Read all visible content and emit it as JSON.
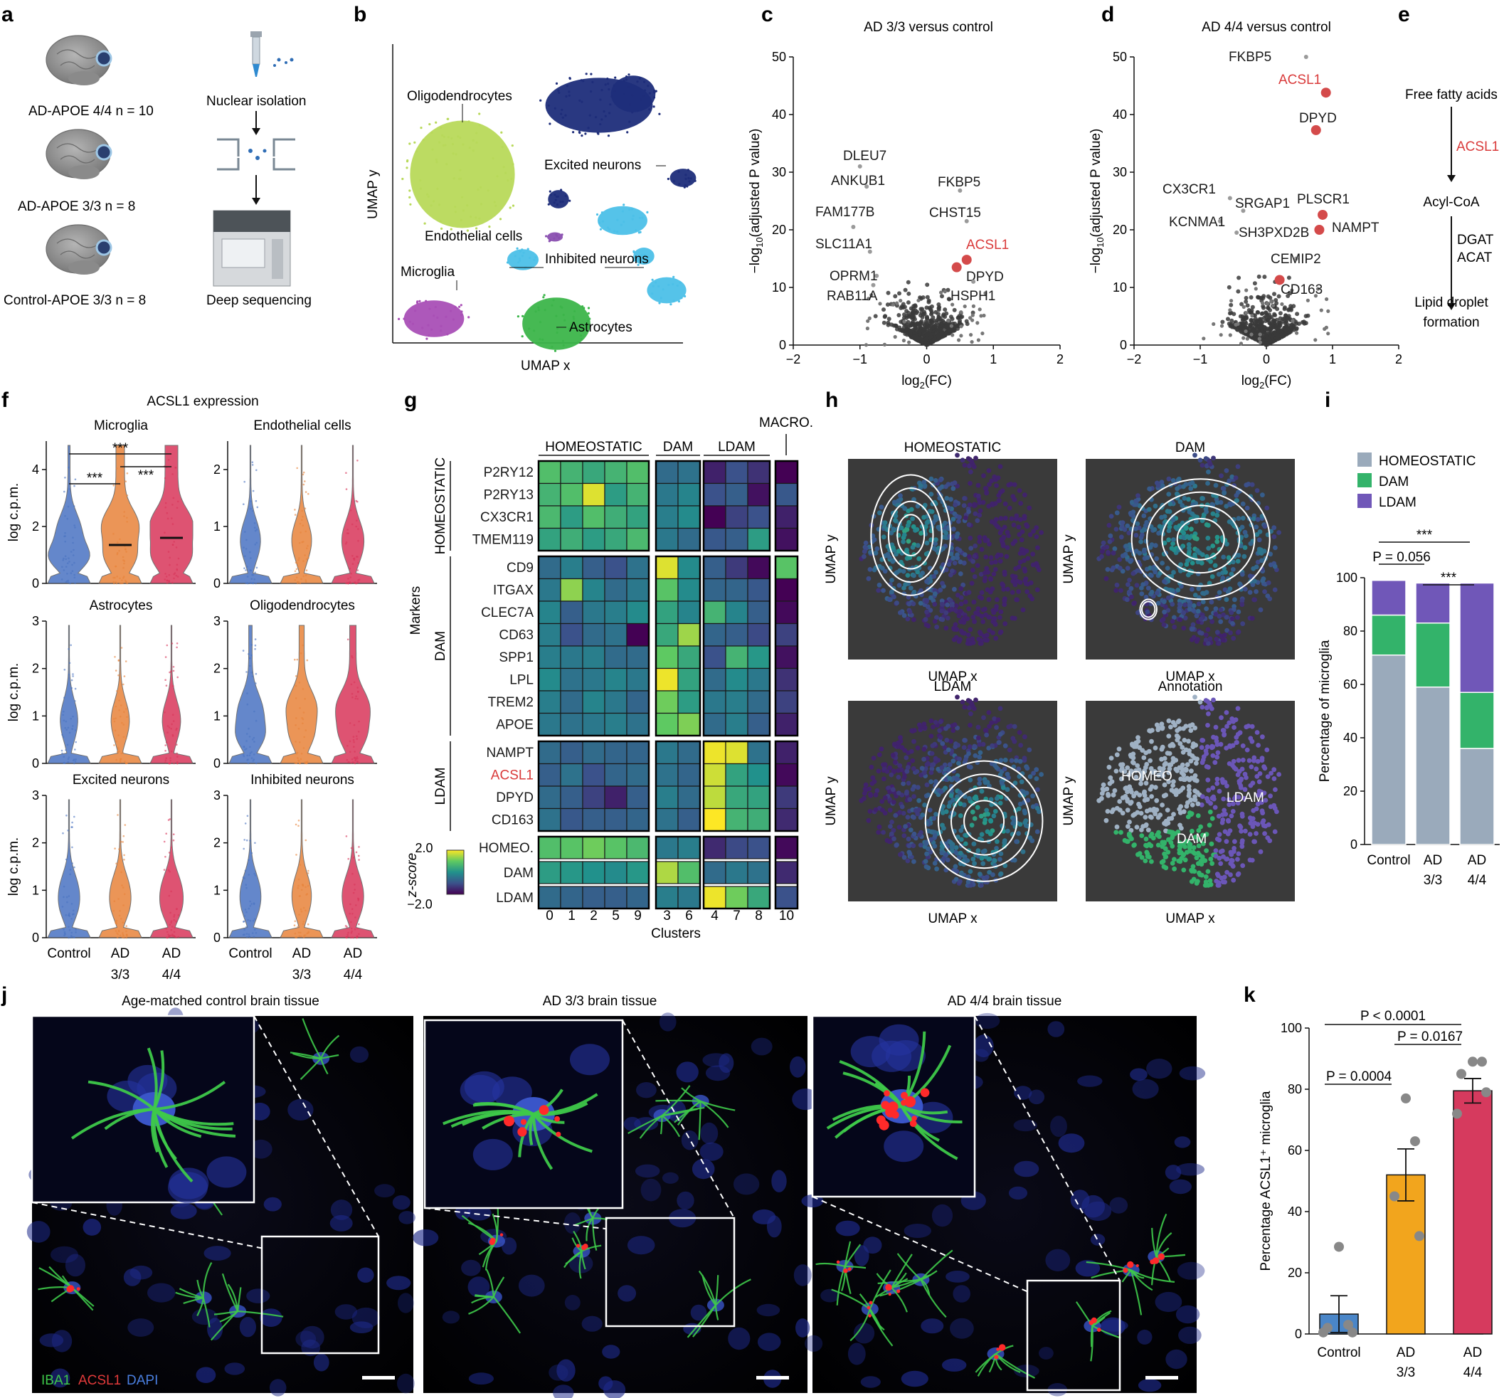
{
  "panels": {
    "a": {
      "letter": "a",
      "cohorts": [
        "AD-APOE 4/4 n = 10",
        "AD-APOE 3/3 n = 8",
        "Control-APOE 3/3 n = 8"
      ],
      "steps": [
        "Nuclear isolation",
        "Deep sequencing"
      ]
    },
    "b": {
      "letter": "b",
      "xlabel": "UMAP x",
      "ylabel": "UMAP y",
      "clusters": [
        {
          "name": "Oligodendrocytes",
          "color": "#b8d95a"
        },
        {
          "name": "Excited neurons",
          "color": "#1e2d7a"
        },
        {
          "name": "Endothelial cells",
          "color": "#8a4fb0"
        },
        {
          "name": "Inhibited neurons",
          "color": "#4cc0e8"
        },
        {
          "name": "Microglia",
          "color": "#a94fb6"
        },
        {
          "name": "Astrocytes",
          "color": "#3cb54a"
        }
      ]
    },
    "c": {
      "letter": "c",
      "title": "AD 3/3 versus control",
      "xlabel": "log2(FC)",
      "ylabel": "−log10(adjusted P value)",
      "labels": [
        "DLEU7",
        "ANKUB1",
        "FAM177B",
        "SLC11A1",
        "OPRM1",
        "RAB11A",
        "FKBP5",
        "CHST15",
        "ACSL1",
        "DPYD",
        "HSPH1"
      ]
    },
    "d": {
      "letter": "d",
      "title": "AD 4/4 versus control",
      "xlabel": "log2(FC)",
      "ylabel": "−log10(adjusted P value)",
      "labels": [
        "FKBP5",
        "ACSL1",
        "DPYD",
        "CX3CR1",
        "SRGAP1",
        "PLSCR1",
        "KCNMA1",
        "SH3PXD2B",
        "NAMPT",
        "CEMIP2",
        "CD163"
      ]
    },
    "e": {
      "letter": "e",
      "steps": [
        "Free fatty acids",
        "ACSL1",
        "Acyl-CoA",
        "DGAT",
        "ACAT",
        "Lipid droplet",
        "formation"
      ]
    },
    "f": {
      "letter": "f",
      "title": "ACSL1 expression",
      "ylabel": "log c.p.m.",
      "subpanels": [
        "Microglia",
        "Endothelial cells",
        "Astrocytes",
        "Oligodendrocytes",
        "Excited neurons",
        "Inhibited neurons"
      ],
      "groups": [
        "Control",
        "AD",
        "AD"
      ],
      "group_sub": [
        "",
        "3/3",
        "4/4"
      ],
      "sig": "***",
      "colors": {
        "control": "#4a73c2",
        "ad33": "#e8833a",
        "ad44": "#d9365a"
      }
    },
    "g": {
      "letter": "g",
      "col_groups": [
        "HOMEOSTATIC",
        "DAM",
        "LDAM",
        "MACRO."
      ],
      "row_groups": [
        "HOMEOSTATIC",
        "DAM",
        "LDAM"
      ],
      "markers_label": "Markers",
      "rows": [
        "P2RY12",
        "P2RY13",
        "CX3CR1",
        "TMEM119",
        "CD9",
        "ITGAX",
        "CLEC7A",
        "CD63",
        "SPP1",
        "LPL",
        "TREM2",
        "APOE",
        "NAMPT",
        "ACSL1",
        "DPYD",
        "CD163",
        "HOMEO.",
        "DAM",
        "LDAM"
      ],
      "clusters": [
        "0",
        "1",
        "2",
        "5",
        "9",
        "3",
        "6",
        "4",
        "7",
        "8",
        "10"
      ],
      "xlabel": "Clusters",
      "cbar_label": "z-score",
      "cbar_max": "2.0",
      "cbar_min": "−2.0",
      "z": [
        [
          0.8,
          0.6,
          0.4,
          0.6,
          0.8,
          -0.6,
          -0.5,
          -1.6,
          -1.0,
          -1.4,
          -2.0
        ],
        [
          0.6,
          0.8,
          1.8,
          0.2,
          0.6,
          -0.4,
          -0.2,
          -1.0,
          -0.8,
          -1.8,
          -0.9
        ],
        [
          0.7,
          0.2,
          0.8,
          0.5,
          0.3,
          -0.3,
          -0.1,
          -2.0,
          -1.2,
          -1.0,
          -1.6
        ],
        [
          0.3,
          0.5,
          0.2,
          0.4,
          0.7,
          -0.4,
          -0.6,
          -0.9,
          -0.8,
          0.2,
          -1.8
        ],
        [
          -0.6,
          -0.3,
          -0.8,
          -1.0,
          -0.5,
          1.8,
          -0.1,
          -0.8,
          -1.3,
          -1.9,
          0.9
        ],
        [
          -0.4,
          1.3,
          -0.2,
          -0.6,
          -0.4,
          0.9,
          -0.1,
          -0.7,
          -0.7,
          -0.9,
          -2.0
        ],
        [
          -0.2,
          -0.8,
          -0.4,
          -0.3,
          -0.1,
          0.3,
          -0.2,
          0.6,
          -0.2,
          -0.8,
          -1.9
        ],
        [
          -0.3,
          -1.0,
          -0.6,
          -0.5,
          -2.0,
          0.4,
          1.4,
          -0.7,
          -0.8,
          -1.1,
          -1.2
        ],
        [
          -0.3,
          -0.4,
          -0.3,
          -0.6,
          -0.6,
          1.0,
          0.4,
          -1.0,
          0.6,
          0.1,
          -1.8
        ],
        [
          -0.1,
          -0.5,
          -0.4,
          -0.2,
          -0.4,
          1.9,
          0.3,
          -0.6,
          -0.1,
          -0.4,
          -1.4
        ],
        [
          -0.3,
          -0.6,
          -0.2,
          -0.4,
          -0.7,
          1.1,
          0.2,
          -0.4,
          -0.3,
          -0.6,
          -1.2
        ],
        [
          -0.4,
          -0.5,
          -0.4,
          -0.3,
          -0.5,
          1.0,
          1.2,
          -0.6,
          -0.3,
          -0.8,
          -1.6
        ],
        [
          -0.6,
          -0.8,
          -0.6,
          -0.7,
          -0.7,
          -0.4,
          -0.6,
          1.9,
          1.8,
          -0.5,
          -1.6
        ],
        [
          -0.8,
          -0.5,
          -1.0,
          -0.7,
          -0.6,
          -0.5,
          -0.7,
          1.7,
          0.3,
          0.0,
          -1.9
        ],
        [
          -0.6,
          -0.8,
          -1.2,
          -1.6,
          -0.8,
          -0.3,
          -0.6,
          1.6,
          0.4,
          0.3,
          -1.3
        ],
        [
          -0.5,
          -0.9,
          -0.8,
          -0.8,
          -0.7,
          -0.5,
          -0.8,
          2.0,
          0.6,
          0.5,
          -1.5
        ],
        [
          0.8,
          0.9,
          1.1,
          0.9,
          0.7,
          -0.4,
          -0.3,
          -1.5,
          -1.1,
          -1.0,
          -1.9
        ],
        [
          0.2,
          0.1,
          0.0,
          -0.1,
          0.1,
          1.5,
          0.8,
          -0.6,
          -0.4,
          -0.5,
          -1.5
        ],
        [
          -0.6,
          -0.7,
          -0.8,
          -0.8,
          -0.7,
          -0.3,
          -0.4,
          1.9,
          1.1,
          0.4,
          -1.0
        ]
      ]
    },
    "h": {
      "letter": "h",
      "subpanels": [
        "HOMEOSTATIC",
        "DAM",
        "LDAM",
        "Annotation"
      ],
      "xlabel": "UMAP x",
      "ylabel": "UMAP y",
      "annot_labels": [
        "HOMEO",
        "DAM",
        "LDAM"
      ],
      "annot_colors": {
        "homeo": "#9fb1c4",
        "dam": "#33b36a",
        "ldam": "#6b56b8"
      }
    },
    "i": {
      "letter": "i",
      "legend": [
        "HOMEOSTATIC",
        "DAM",
        "LDAM"
      ],
      "ylabel": "Percentage of microglia",
      "groups": [
        "Control",
        "AD",
        "AD"
      ],
      "group_sub": [
        "",
        "3/3",
        "4/4"
      ],
      "p_text": "P = 0.056",
      "sig": "***"
    },
    "j": {
      "letter": "j",
      "titles": [
        "Age-matched control brain tissue",
        "AD 3/3 brain tissue",
        "AD 4/4 brain tissue"
      ],
      "stain": [
        "IBA1",
        "ACSL1",
        "DAPI"
      ]
    },
    "k": {
      "letter": "k",
      "ylabel": "Percentage ACSL1⁺ microglia",
      "groups": [
        "Control",
        "AD",
        "AD"
      ],
      "group_sub": [
        "",
        "3/3",
        "4/4"
      ],
      "p_values": [
        "P < 0.0001",
        "P = 0.0004",
        "P = 0.0167"
      ]
    }
  },
  "chart_data": [
    {
      "type": "scatter",
      "panel": "c",
      "title": "AD 3/3 versus control",
      "xlabel": "log2(FC)",
      "ylabel": "−log10(adjusted P value)",
      "xlim": [
        -2,
        2
      ],
      "ylim": [
        0,
        50
      ],
      "xticks": [
        -2,
        -1,
        0,
        1,
        2
      ],
      "yticks": [
        0,
        10,
        20,
        30,
        40,
        50
      ],
      "points": [
        {
          "label": "DLEU7",
          "x": -1.0,
          "y": 31.0
        },
        {
          "label": "ANKUB1",
          "x": -0.9,
          "y": 27.5
        },
        {
          "label": "FAM177B",
          "x": -1.1,
          "y": 20.5
        },
        {
          "label": "SLC11A1",
          "x": -0.85,
          "y": 16.2
        },
        {
          "label": "OPRM1",
          "x": -0.75,
          "y": 12.0
        },
        {
          "label": "RAB11A",
          "x": -0.8,
          "y": 10.4
        },
        {
          "label": "FKBP5",
          "x": 0.5,
          "y": 26.8
        },
        {
          "label": "CHST15",
          "x": 0.6,
          "y": 21.5
        },
        {
          "label": "ACSL1",
          "x": 0.6,
          "y": 14.8
        },
        {
          "label": "DPYD",
          "x": 0.45,
          "y": 13.5
        },
        {
          "label": "HSPH1",
          "x": 0.7,
          "y": 11.0
        }
      ]
    },
    {
      "type": "scatter",
      "panel": "d",
      "title": "AD 4/4 versus control",
      "xlabel": "log2(FC)",
      "ylabel": "−log10(adjusted P value)",
      "xlim": [
        -2,
        2
      ],
      "ylim": [
        0,
        50
      ],
      "xticks": [
        -2,
        -1,
        0,
        1,
        2
      ],
      "yticks": [
        0,
        10,
        20,
        30,
        40,
        50
      ],
      "points": [
        {
          "label": "FKBP5",
          "x": 0.6,
          "y": 50.0
        },
        {
          "label": "ACSL1",
          "x": 0.9,
          "y": 43.8
        },
        {
          "label": "DPYD",
          "x": 0.75,
          "y": 37.3
        },
        {
          "label": "CX3CR1",
          "x": -0.55,
          "y": 25.5
        },
        {
          "label": "SRGAP1",
          "x": -0.35,
          "y": 23.3
        },
        {
          "label": "PLSCR1",
          "x": 0.85,
          "y": 22.6
        },
        {
          "label": "KCNMA1",
          "x": -0.7,
          "y": 21.5
        },
        {
          "label": "SH3PXD2B",
          "x": -0.45,
          "y": 19.5
        },
        {
          "label": "NAMPT",
          "x": 0.8,
          "y": 20.0
        },
        {
          "label": "CEMIP2",
          "x": 0.45,
          "y": 15.0
        },
        {
          "label": "CD163",
          "x": 0.2,
          "y": 11.3
        }
      ]
    },
    {
      "type": "violin",
      "panel": "f",
      "title": "ACSL1 expression",
      "ylabel": "log c.p.m.",
      "categories": [
        "Control",
        "AD 3/3",
        "AD 4/4"
      ],
      "subplots": [
        {
          "name": "Microglia",
          "ylim": [
            0,
            5
          ],
          "yticks": [
            0,
            2,
            4
          ],
          "medians": [
            null,
            1.35,
            1.6
          ]
        },
        {
          "name": "Endothelial cells",
          "ylim": [
            0,
            2.5
          ],
          "yticks": [
            0,
            1,
            2
          ],
          "medians": [
            null,
            null,
            null
          ]
        },
        {
          "name": "Astrocytes",
          "ylim": [
            0,
            3
          ],
          "yticks": [
            0,
            1,
            2,
            3
          ],
          "medians": [
            null,
            null,
            null
          ]
        },
        {
          "name": "Oligodendrocytes",
          "ylim": [
            0,
            3
          ],
          "yticks": [
            0,
            1,
            2,
            3
          ],
          "medians": [
            null,
            null,
            null
          ]
        },
        {
          "name": "Excited neurons",
          "ylim": [
            0,
            3
          ],
          "yticks": [
            0,
            1,
            2,
            3
          ],
          "medians": [
            null,
            null,
            null
          ]
        },
        {
          "name": "Inhibited neurons",
          "ylim": [
            0,
            3
          ],
          "yticks": [
            0,
            1,
            2,
            3
          ],
          "medians": [
            null,
            null,
            null
          ]
        }
      ]
    },
    {
      "type": "bar",
      "panel": "i",
      "ylabel": "Percentage of microglia",
      "categories": [
        "Control",
        "AD 3/3",
        "AD 4/4"
      ],
      "ylim": [
        0,
        100
      ],
      "yticks": [
        0,
        20,
        40,
        60,
        80,
        100
      ],
      "stacked": true,
      "series": [
        {
          "name": "HOMEOSTATIC",
          "values": [
            71,
            59,
            36
          ]
        },
        {
          "name": "DAM",
          "values": [
            15,
            24,
            21
          ]
        },
        {
          "name": "LDAM",
          "values": [
            13,
            15,
            41
          ]
        }
      ]
    },
    {
      "type": "bar",
      "panel": "k",
      "ylabel": "Percentage ACSL1⁺ microglia",
      "categories": [
        "Control",
        "AD 3/3",
        "AD 4/4"
      ],
      "ylim": [
        0,
        100
      ],
      "yticks": [
        0,
        20,
        40,
        60,
        80,
        100
      ],
      "values": [
        6.5,
        52,
        79.5
      ],
      "sem": [
        6,
        8.5,
        4
      ],
      "points": [
        [
          28.5,
          3,
          2,
          0.5,
          0.5
        ],
        [
          77,
          63,
          45,
          32
        ],
        [
          89,
          89,
          85,
          79,
          72
        ]
      ]
    }
  ]
}
